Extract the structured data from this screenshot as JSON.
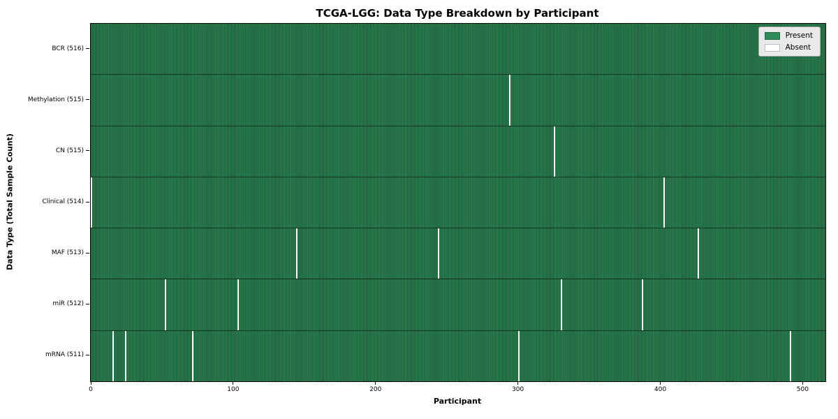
{
  "chart_data": {
    "type": "heatmap",
    "title": "TCGA-LGG: Data Type Breakdown by Participant",
    "xlabel": "Participant",
    "ylabel": "Data Type (Total Sample Count)",
    "x_ticks": [
      0,
      100,
      200,
      300,
      400,
      500
    ],
    "x_range": [
      0,
      516
    ],
    "n_participants": 516,
    "grid": false,
    "legend_position": "upper right",
    "rows": [
      {
        "data_type": "BCR",
        "label": "BCR (516)",
        "present_count": 516,
        "absent_count": 0,
        "absent_participants": []
      },
      {
        "data_type": "Methylation",
        "label": "Methylation (515)",
        "present_count": 515,
        "absent_count": 1,
        "absent_participants": [
          294
        ]
      },
      {
        "data_type": "CN",
        "label": "CN (515)",
        "present_count": 515,
        "absent_count": 1,
        "absent_participants": [
          325
        ]
      },
      {
        "data_type": "Clinical",
        "label": "Clinical (514)",
        "present_count": 514,
        "absent_count": 2,
        "absent_participants": [
          0,
          402
        ]
      },
      {
        "data_type": "MAF",
        "label": "MAF (513)",
        "present_count": 513,
        "absent_count": 3,
        "absent_participants": [
          144,
          244,
          426
        ]
      },
      {
        "data_type": "miR",
        "label": "miR (512)",
        "present_count": 512,
        "absent_count": 4,
        "absent_participants": [
          52,
          103,
          330,
          387
        ]
      },
      {
        "data_type": "mRNA",
        "label": "mRNA (511)",
        "present_count": 511,
        "absent_count": 5,
        "absent_participants": [
          15,
          24,
          71,
          300,
          491
        ]
      }
    ],
    "legend": [
      {
        "label": "Present",
        "color": "#2e8b57"
      },
      {
        "label": "Absent",
        "color": "#ffffff"
      }
    ],
    "colors": {
      "present": "#2e8b57",
      "absent": "#ffffff",
      "bar_edge": "#17492d",
      "legend_bg": "#e9e9e9"
    }
  }
}
